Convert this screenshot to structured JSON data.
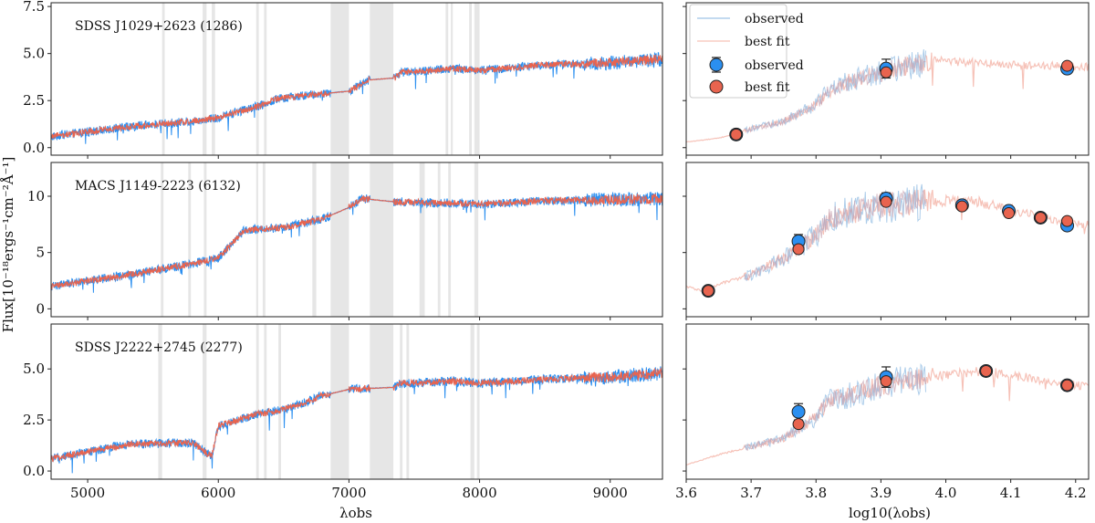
{
  "colors": {
    "observed": "#2b8ff0",
    "best_fit": "#e8644f",
    "observed_sed_line": "#9fc4e6",
    "best_fit_sed_line": "#f6c2b8",
    "masked_region": "#e6e6e6"
  },
  "shared": {
    "y_label": "Flux[10⁻¹⁸ergs⁻¹cm⁻²Å⁻¹]",
    "left_x_label": "λobs",
    "right_x_label": "log10(λobs)",
    "left_x_ticks": [
      5000,
      6000,
      7000,
      8000,
      9000
    ],
    "left_xlim": [
      4720,
      9400
    ],
    "right_x_ticks": [
      3.6,
      3.7,
      3.8,
      3.9,
      4.0,
      4.1,
      4.2
    ],
    "right_x_tick_labels": [
      "3.6",
      "3.7",
      "3.8",
      "3.9",
      "4.0",
      "4.1",
      "4.2"
    ],
    "right_xlim": [
      3.6,
      4.22
    ]
  },
  "legend": {
    "line_observed": "observed",
    "line_best_fit": "best fit",
    "point_observed": "observed",
    "point_best_fit": "best fit"
  },
  "chart_data": [
    {
      "type": "line",
      "title": "SDSS J1029+2623 (1286)",
      "ylim": [
        -0.4,
        7.7
      ],
      "y_ticks": [
        0.0,
        2.5,
        5.0,
        7.5
      ],
      "y_tick_labels": [
        "0.0",
        "2.5",
        "5.0",
        "7.5"
      ],
      "spectrum_anchors": [
        [
          4720,
          0.6
        ],
        [
          5300,
          1.1
        ],
        [
          5800,
          1.4
        ],
        [
          6000,
          1.6
        ],
        [
          6300,
          2.2
        ],
        [
          6450,
          2.6
        ],
        [
          6700,
          2.8
        ],
        [
          7000,
          3.0
        ],
        [
          7150,
          3.6
        ],
        [
          7350,
          3.7
        ],
        [
          7400,
          4.0
        ],
        [
          7800,
          4.2
        ],
        [
          8000,
          4.1
        ],
        [
          8500,
          4.4
        ],
        [
          9000,
          4.5
        ],
        [
          9400,
          4.7
        ]
      ],
      "masked_regions": [
        [
          5570,
          5590
        ],
        [
          5880,
          5910
        ],
        [
          5950,
          5975
        ],
        [
          6290,
          6310
        ],
        [
          6350,
          6370
        ],
        [
          6860,
          7000
        ],
        [
          7160,
          7340
        ],
        [
          7740,
          7760
        ],
        [
          7780,
          7795
        ],
        [
          7920,
          7940
        ],
        [
          7960,
          8000
        ]
      ],
      "photometry": {
        "log_lambda": [
          3.677,
          3.908,
          4.187
        ],
        "observed": [
          0.7,
          4.2,
          4.2
        ],
        "observed_err": [
          0.25,
          0.5,
          0.15
        ],
        "best_fit": [
          0.7,
          4.0,
          4.35
        ]
      },
      "sed_model_anchors": [
        [
          3.6,
          0.3
        ],
        [
          3.65,
          0.5
        ],
        [
          3.7,
          1.0
        ],
        [
          3.75,
          1.4
        ],
        [
          3.8,
          2.3
        ],
        [
          3.82,
          3.0
        ],
        [
          3.85,
          3.5
        ],
        [
          3.9,
          4.0
        ],
        [
          3.97,
          4.6
        ],
        [
          4.0,
          4.6
        ],
        [
          4.1,
          4.4
        ],
        [
          4.2,
          4.3
        ]
      ],
      "sed_observed_range": [
        3.69,
        3.97
      ]
    },
    {
      "type": "line",
      "title": "MACS J1149-2223 (6132)",
      "ylim": [
        -0.7,
        13.0
      ],
      "y_ticks": [
        0,
        5,
        10
      ],
      "y_tick_labels": [
        "0",
        "5",
        "10"
      ],
      "spectrum_anchors": [
        [
          4720,
          2.0
        ],
        [
          5300,
          3.0
        ],
        [
          5800,
          4.0
        ],
        [
          6000,
          4.5
        ],
        [
          6200,
          7.0
        ],
        [
          6500,
          7.2
        ],
        [
          6800,
          8.0
        ],
        [
          7000,
          9.0
        ],
        [
          7100,
          9.8
        ],
        [
          7350,
          9.5
        ],
        [
          7400,
          9.5
        ],
        [
          8000,
          9.3
        ],
        [
          8500,
          9.6
        ],
        [
          9000,
          9.7
        ],
        [
          9400,
          9.8
        ]
      ],
      "masked_regions": [
        [
          5560,
          5580
        ],
        [
          5770,
          5790
        ],
        [
          5890,
          5910
        ],
        [
          6290,
          6305
        ],
        [
          6340,
          6360
        ],
        [
          6720,
          6750
        ],
        [
          6860,
          7000
        ],
        [
          7160,
          7340
        ],
        [
          7540,
          7580
        ],
        [
          7680,
          7700
        ],
        [
          7760,
          7780
        ],
        [
          7960,
          7990
        ]
      ],
      "photometry": {
        "log_lambda": [
          3.634,
          3.773,
          3.908,
          4.025,
          4.097,
          4.146,
          4.187
        ],
        "observed": [
          1.6,
          6.0,
          9.8,
          9.2,
          8.7,
          8.1,
          7.4
        ],
        "observed_err": [
          0.3,
          0.6,
          0.5,
          0.4,
          0.4,
          0.3,
          0.3
        ],
        "best_fit": [
          1.6,
          5.3,
          9.5,
          9.1,
          8.5,
          8.1,
          7.8
        ]
      },
      "sed_model_anchors": [
        [
          3.6,
          2.0
        ],
        [
          3.63,
          1.5
        ],
        [
          3.65,
          2.2
        ],
        [
          3.7,
          3.0
        ],
        [
          3.75,
          4.5
        ],
        [
          3.8,
          6.5
        ],
        [
          3.82,
          8.0
        ],
        [
          3.85,
          8.5
        ],
        [
          3.9,
          9.2
        ],
        [
          3.97,
          9.5
        ],
        [
          4.0,
          9.6
        ],
        [
          4.05,
          9.5
        ],
        [
          4.1,
          8.8
        ],
        [
          4.2,
          7.5
        ]
      ],
      "sed_observed_range": [
        3.69,
        3.97
      ]
    },
    {
      "type": "line",
      "title": "SDSS J2222+2745 (2277)",
      "ylim": [
        -0.4,
        7.2
      ],
      "y_ticks": [
        0.0,
        2.5,
        5.0
      ],
      "y_tick_labels": [
        "0.0",
        "2.5",
        "5.0"
      ],
      "spectrum_anchors": [
        [
          4720,
          0.6
        ],
        [
          5300,
          1.3
        ],
        [
          5800,
          1.4
        ],
        [
          5950,
          0.7
        ],
        [
          6000,
          2.2
        ],
        [
          6300,
          2.8
        ],
        [
          6500,
          3.0
        ],
        [
          6800,
          3.7
        ],
        [
          7000,
          4.0
        ],
        [
          7350,
          4.1
        ],
        [
          7400,
          4.3
        ],
        [
          7800,
          4.4
        ],
        [
          8000,
          4.3
        ],
        [
          8500,
          4.5
        ],
        [
          9000,
          4.6
        ],
        [
          9400,
          4.8
        ]
      ],
      "masked_regions": [
        [
          5540,
          5570
        ],
        [
          5880,
          5910
        ],
        [
          6290,
          6310
        ],
        [
          6350,
          6370
        ],
        [
          6460,
          6480
        ],
        [
          6860,
          7000
        ],
        [
          7160,
          7340
        ],
        [
          7390,
          7410
        ],
        [
          7440,
          7460
        ],
        [
          7930,
          7960
        ],
        [
          7980,
          8000
        ]
      ],
      "photometry": {
        "log_lambda": [
          3.773,
          3.908,
          4.062,
          4.187
        ],
        "observed": [
          2.9,
          4.6,
          4.9,
          4.2
        ],
        "observed_err": [
          0.4,
          0.5,
          0.2,
          0.15
        ],
        "best_fit": [
          2.3,
          4.4,
          4.9,
          4.2
        ]
      },
      "sed_model_anchors": [
        [
          3.6,
          0.3
        ],
        [
          3.65,
          0.8
        ],
        [
          3.7,
          1.2
        ],
        [
          3.75,
          1.6
        ],
        [
          3.8,
          2.6
        ],
        [
          3.82,
          3.5
        ],
        [
          3.85,
          3.7
        ],
        [
          3.9,
          4.2
        ],
        [
          3.97,
          4.6
        ],
        [
          4.0,
          4.7
        ],
        [
          4.06,
          4.9
        ],
        [
          4.1,
          4.7
        ],
        [
          4.2,
          4.2
        ]
      ],
      "sed_observed_range": [
        3.69,
        3.97
      ]
    }
  ]
}
